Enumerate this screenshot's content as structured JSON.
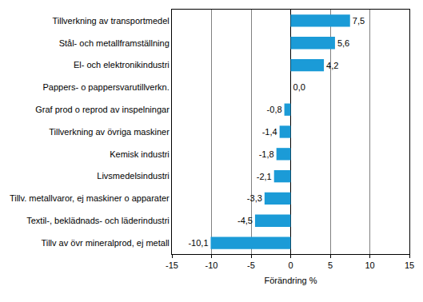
{
  "chart_data": {
    "type": "bar",
    "orientation": "horizontal",
    "categories": [
      "Tillverkning av transportmedel",
      "Stål- och metallframställning",
      "El- och elektronikindustri",
      "Pappers- o pappersvarutillverkn.",
      "Graf prod o reprod av inspelningar",
      "Tillverkning av övriga maskiner",
      "Kemisk industri",
      "Livsmedelsindustri",
      "Tillv. metallvaror, ej maskiner o apparater",
      "Textil-, beklädnads- och läderindustri",
      "Tillv av övr mineralprod, ej metall"
    ],
    "values": [
      7.5,
      5.6,
      4.2,
      0.0,
      -0.8,
      -1.4,
      -1.8,
      -2.1,
      -3.3,
      -4.5,
      -10.1
    ],
    "value_labels": [
      "7,5",
      "5,6",
      "4,2",
      "0,0",
      "-0,8",
      "-1,4",
      "-1,8",
      "-2,1",
      "-3,3",
      "-4,5",
      "-10,1"
    ],
    "data_labels": true,
    "color": "#1b9bd7",
    "xlabel": "Förändring %",
    "xlim": [
      -15,
      15
    ],
    "xticks": [
      -15,
      -10,
      -5,
      0,
      5,
      10,
      15
    ],
    "grid": true
  }
}
